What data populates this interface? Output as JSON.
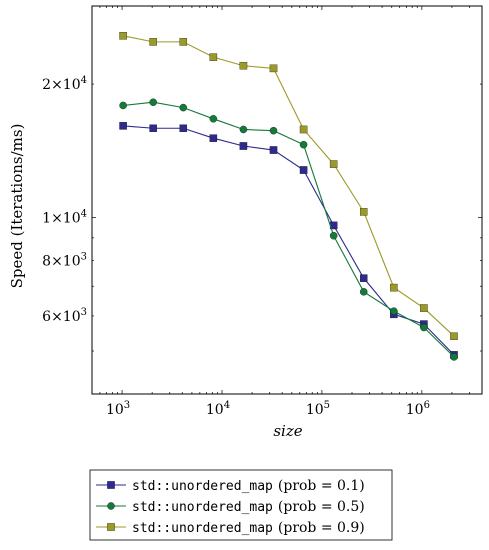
{
  "chart_data": {
    "type": "line",
    "xlabel": "size",
    "ylabel": "Speed (Iterations/ms)",
    "xscale": "log",
    "yscale": "log",
    "xlim": [
      500,
      4000000
    ],
    "ylim": [
      4000,
      30000
    ],
    "xticks": [
      {
        "value": 1000,
        "base": "10",
        "exp": "3"
      },
      {
        "value": 10000,
        "base": "10",
        "exp": "4"
      },
      {
        "value": 100000,
        "base": "10",
        "exp": "5"
      },
      {
        "value": 1000000,
        "base": "10",
        "exp": "6"
      }
    ],
    "yticks": [
      {
        "value": 6000,
        "label": "6×10",
        "exp": "3"
      },
      {
        "value": 8000,
        "label": "8×10",
        "exp": "3"
      },
      {
        "value": 10000,
        "label": "1×10",
        "exp": "4"
      },
      {
        "value": 20000,
        "label": "2×10",
        "exp": "4"
      }
    ],
    "x": [
      1024,
      2048,
      4096,
      8192,
      16384,
      32768,
      65536,
      131072,
      262144,
      524288,
      1048576,
      2097152
    ],
    "series": [
      {
        "name": "std::unordered_map (prob = 0.1)",
        "code": "std::unordered_map",
        "param": "(prob = 0.1)",
        "color": "#2e2a8e",
        "marker": "square",
        "values": [
          16100,
          15900,
          15900,
          15100,
          14500,
          14200,
          12800,
          9600,
          7300,
          6050,
          5750,
          4900
        ]
      },
      {
        "name": "std::unordered_map (prob = 0.5)",
        "code": "std::unordered_map",
        "param": "(prob = 0.5)",
        "color": "#147a3a",
        "marker": "circle",
        "values": [
          17900,
          18200,
          17700,
          16700,
          15800,
          15700,
          14600,
          9100,
          6800,
          6150,
          5650,
          4850
        ]
      },
      {
        "name": "std::unordered_map (prob = 0.9)",
        "code": "std::unordered_map",
        "param": "(prob = 0.9)",
        "color": "#9c9a27",
        "marker": "square",
        "values": [
          25700,
          24900,
          24900,
          23000,
          22000,
          21700,
          15800,
          13200,
          10300,
          6950,
          6250,
          5400
        ]
      }
    ],
    "grid": false,
    "legend_position": "below"
  }
}
